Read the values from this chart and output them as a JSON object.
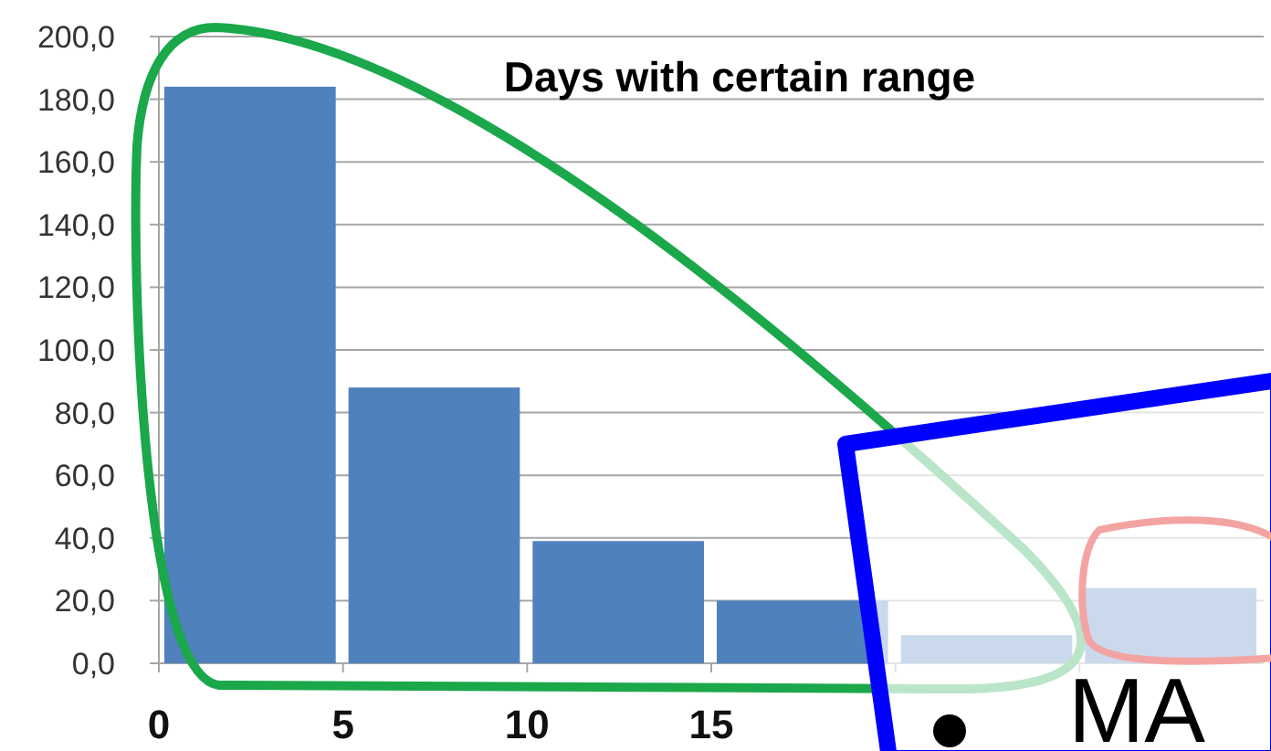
{
  "chart_data": {
    "type": "histogram",
    "title": "Days with certain range",
    "bins": [
      0,
      5,
      10,
      15,
      20,
      25,
      30
    ],
    "values": [
      184,
      88,
      39,
      20,
      9,
      24
    ],
    "color": "#4f81bd",
    "xlim": [
      0,
      30
    ],
    "xticks": [
      0,
      5,
      10,
      15,
      {
        "value": 20,
        "label": null
      },
      {
        "value": 25,
        "label": null
      }
    ],
    "ylim": [
      0,
      200
    ],
    "yticks": [
      {
        "value": 0,
        "label": "0,0"
      },
      {
        "value": 20,
        "label": "20,0"
      },
      {
        "value": 40,
        "label": "40,0"
      },
      {
        "value": 60,
        "label": "60,0"
      },
      {
        "value": 80,
        "label": "80,0"
      },
      {
        "value": 100,
        "label": "100,0"
      },
      {
        "value": 120,
        "label": "120,0"
      },
      {
        "value": 140,
        "label": "140,0"
      },
      {
        "value": 160,
        "label": "160,0"
      },
      {
        "value": 180,
        "label": "180,0"
      },
      {
        "value": 200,
        "label": "200,0"
      }
    ],
    "grid": "y",
    "annotations": [
      "MA"
    ]
  }
}
